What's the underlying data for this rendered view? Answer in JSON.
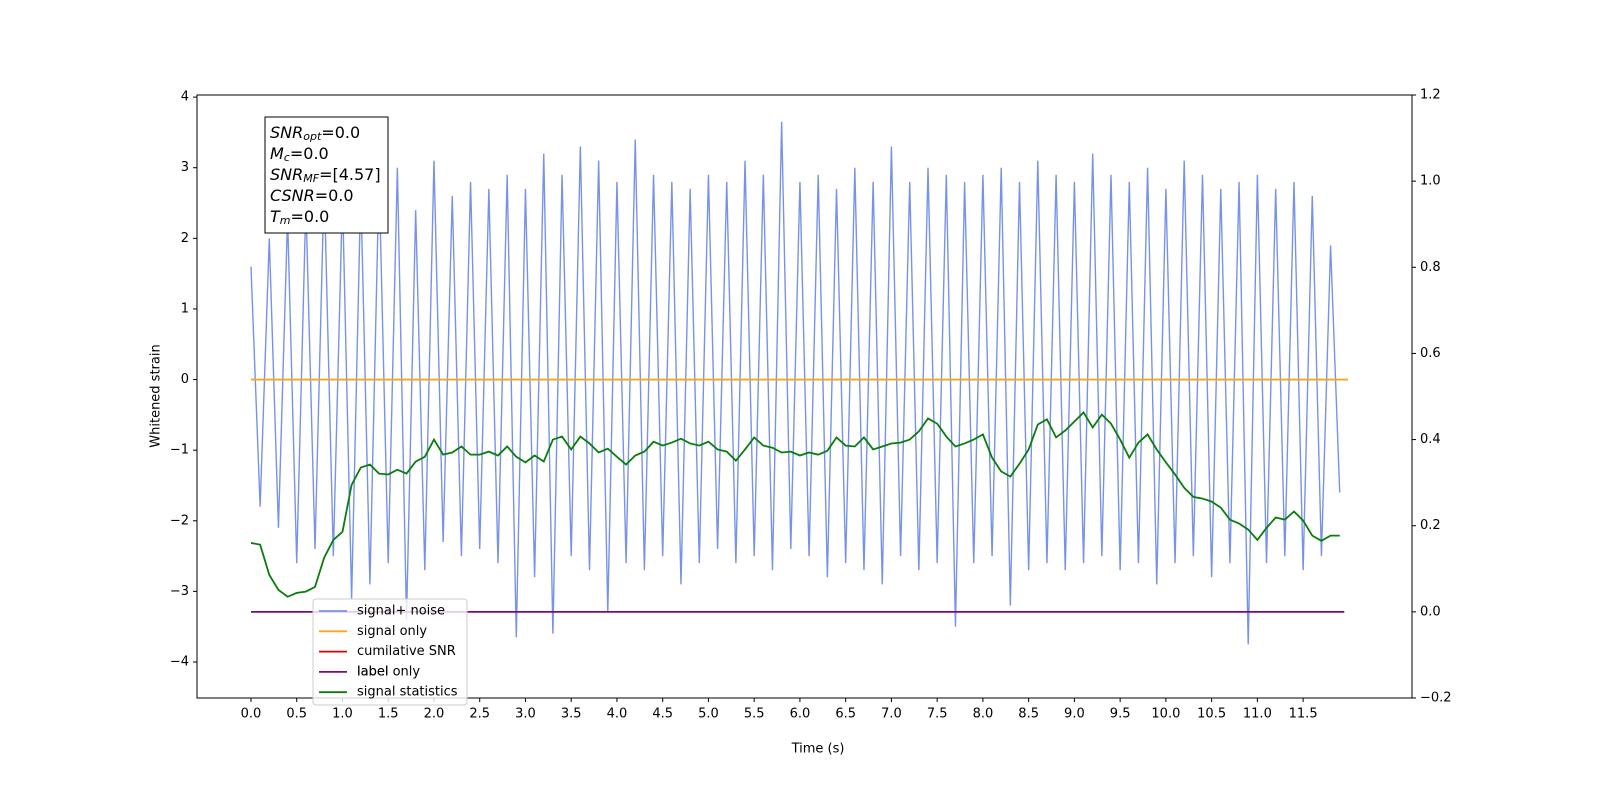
{
  "chart_data": {
    "type": "line",
    "xlabel": "Time (s)",
    "ylabel": "Whitened strain",
    "xlim": [
      -0.59,
      12.69
    ],
    "ylim": [
      -4.51,
      4.03
    ],
    "y2lim": [
      -0.2,
      1.2
    ],
    "xticks": [
      {
        "value": 0,
        "label": "0.0"
      },
      {
        "value": 0.5,
        "label": "0.5"
      },
      {
        "value": 1,
        "label": "1.0"
      },
      {
        "value": 1.5,
        "label": "1.5"
      },
      {
        "value": 2,
        "label": "2.0"
      },
      {
        "value": 2.5,
        "label": "2.5"
      },
      {
        "value": 3,
        "label": "3.0"
      },
      {
        "value": 3.5,
        "label": "3.5"
      },
      {
        "value": 4,
        "label": "4.0"
      },
      {
        "value": 4.5,
        "label": "4.5"
      },
      {
        "value": 5,
        "label": "5.0"
      },
      {
        "value": 5.5,
        "label": "5.5"
      },
      {
        "value": 6,
        "label": "6.0"
      },
      {
        "value": 6.5,
        "label": "6.5"
      },
      {
        "value": 7,
        "label": "7.0"
      },
      {
        "value": 7.5,
        "label": "7.5"
      },
      {
        "value": 8,
        "label": "8.0"
      },
      {
        "value": 8.5,
        "label": "8.5"
      },
      {
        "value": 9,
        "label": "9.0"
      },
      {
        "value": 9.5,
        "label": "9.5"
      },
      {
        "value": 10,
        "label": "10.0"
      },
      {
        "value": 10.5,
        "label": "10.5"
      },
      {
        "value": 11,
        "label": "11.0"
      },
      {
        "value": 11.5,
        "label": "11.5"
      }
    ],
    "yticks": [
      {
        "value": -4,
        "label": "−4"
      },
      {
        "value": -3,
        "label": "−3"
      },
      {
        "value": -2,
        "label": "−2"
      },
      {
        "value": -1,
        "label": "−1"
      },
      0,
      1,
      2,
      3,
      4
    ],
    "y2ticks": [
      {
        "value": -0.2,
        "label": "−0.2"
      },
      {
        "value": 0,
        "label": "0.0"
      },
      0.2,
      0.4,
      0.6,
      0.8,
      {
        "value": 1,
        "label": "1.0"
      },
      1.2
    ],
    "annotations": [
      {
        "symbol": "SNR",
        "sub": "opt",
        "text": "=0.0"
      },
      {
        "symbol": "M",
        "sub": "c",
        "text": "=0.0"
      },
      {
        "symbol": "SNR",
        "sub": "MF",
        "text": "=[4.57]"
      },
      {
        "symbol": "CSNR",
        "text": "=0.0"
      },
      {
        "symbol": "T",
        "sub": "m",
        "text": "=0.0"
      }
    ],
    "x": [
      0.0,
      0.1,
      0.2,
      0.3,
      0.4,
      0.5,
      0.6,
      0.7,
      0.8,
      0.9,
      1.0,
      1.1,
      1.2,
      1.3,
      1.4,
      1.5,
      1.6,
      1.7,
      1.8,
      1.9,
      2.0,
      2.1,
      2.2,
      2.3,
      2.4,
      2.5,
      2.6,
      2.7,
      2.8,
      2.9,
      3.0,
      3.1,
      3.2,
      3.3,
      3.4,
      3.5,
      3.6,
      3.7,
      3.8,
      3.9,
      4.0,
      4.1,
      4.2,
      4.3,
      4.4,
      4.5,
      4.6,
      4.7,
      4.8,
      4.9,
      5.0,
      5.1,
      5.2,
      5.3,
      5.4,
      5.5,
      5.6,
      5.7,
      5.8,
      5.9,
      6.0,
      6.1,
      6.2,
      6.3,
      6.4,
      6.5,
      6.6,
      6.7,
      6.8,
      6.9,
      7.0,
      7.1,
      7.2,
      7.3,
      7.4,
      7.5,
      7.6,
      7.7,
      7.8,
      7.9,
      8.0,
      8.1,
      8.2,
      8.3,
      8.4,
      8.5,
      8.6,
      8.7,
      8.8,
      8.9,
      9.0,
      9.1,
      9.2,
      9.3,
      9.4,
      9.5,
      9.6,
      9.7,
      9.8,
      9.9,
      10.0,
      10.1,
      10.2,
      10.3,
      10.4,
      10.5,
      10.6,
      10.7,
      10.8,
      10.9,
      11.0,
      11.1,
      11.2,
      11.3,
      11.4,
      11.5,
      11.6,
      11.7,
      11.8,
      11.9
    ],
    "series": [
      {
        "name": "signal+ noise",
        "color": "#7893e6",
        "values": [
          1.6,
          -1.8,
          2.0,
          -2.1,
          2.3,
          -2.6,
          2.5,
          -2.4,
          2.8,
          -2.5,
          2.6,
          -3.1,
          2.7,
          -2.9,
          2.9,
          -2.6,
          3.0,
          -3.4,
          2.4,
          -2.7,
          3.1,
          -2.3,
          2.6,
          -2.5,
          2.8,
          -2.4,
          2.7,
          -2.6,
          2.9,
          -3.65,
          2.7,
          -2.8,
          3.2,
          -3.6,
          2.9,
          -2.5,
          3.3,
          -2.7,
          3.1,
          -3.3,
          2.8,
          -2.6,
          3.4,
          -2.7,
          2.9,
          -2.5,
          2.8,
          -2.9,
          2.7,
          -2.6,
          2.9,
          -2.4,
          2.8,
          -2.6,
          3.1,
          -2.5,
          2.9,
          -2.7,
          3.65,
          -2.4,
          2.8,
          -2.5,
          2.9,
          -2.8,
          2.7,
          -2.6,
          3.0,
          -2.7,
          2.8,
          -2.9,
          3.3,
          -2.5,
          2.8,
          -2.7,
          3.0,
          -2.6,
          2.9,
          -3.5,
          2.8,
          -2.6,
          2.9,
          -2.5,
          3.0,
          -3.2,
          2.8,
          -2.7,
          3.1,
          -2.6,
          2.9,
          -2.7,
          2.8,
          -2.6,
          3.2,
          -2.5,
          2.9,
          -2.7,
          2.8,
          -2.6,
          3.0,
          -2.9,
          2.7,
          -2.6,
          3.1,
          -2.5,
          2.9,
          -2.8,
          2.7,
          -2.6,
          2.8,
          -3.75,
          2.9,
          -2.6,
          2.7,
          -2.5,
          2.8,
          -2.7,
          2.6,
          -2.5,
          1.9,
          -1.6
        ]
      },
      {
        "name": "signal only",
        "color": "#f5a623",
        "x": [
          0,
          11.99
        ],
        "values": [
          0,
          0
        ]
      },
      {
        "name": "cumilative SNR",
        "color": "#e00000"
      },
      {
        "name": "label",
        "color": "#7b0a7b",
        "axis": "y2",
        "x": [
          0,
          11.95
        ],
        "values": [
          0,
          0
        ]
      },
      {
        "name": "label only"
      },
      {
        "name": "signal statistics",
        "color": "#0a7d0a",
        "axis": "y2",
        "values": [
          0.16,
          0.156,
          0.086,
          0.051,
          0.035,
          0.044,
          0.047,
          0.058,
          0.126,
          0.167,
          0.186,
          0.295,
          0.335,
          0.342,
          0.321,
          0.319,
          0.33,
          0.321,
          0.349,
          0.36,
          0.4,
          0.365,
          0.37,
          0.384,
          0.365,
          0.365,
          0.372,
          0.363,
          0.384,
          0.36,
          0.347,
          0.363,
          0.349,
          0.4,
          0.407,
          0.377,
          0.407,
          0.391,
          0.37,
          0.379,
          0.36,
          0.342,
          0.363,
          0.372,
          0.395,
          0.386,
          0.393,
          0.402,
          0.391,
          0.386,
          0.395,
          0.377,
          0.372,
          0.351,
          0.377,
          0.405,
          0.386,
          0.381,
          0.37,
          0.372,
          0.363,
          0.37,
          0.365,
          0.374,
          0.405,
          0.386,
          0.384,
          0.405,
          0.377,
          0.384,
          0.391,
          0.393,
          0.4,
          0.419,
          0.449,
          0.437,
          0.407,
          0.384,
          0.391,
          0.4,
          0.412,
          0.358,
          0.326,
          0.314,
          0.344,
          0.377,
          0.435,
          0.447,
          0.405,
          0.421,
          0.442,
          0.463,
          0.428,
          0.458,
          0.437,
          0.4,
          0.358,
          0.393,
          0.412,
          0.377,
          0.347,
          0.319,
          0.288,
          0.267,
          0.263,
          0.256,
          0.242,
          0.214,
          0.205,
          0.191,
          0.167,
          0.195,
          0.219,
          0.214,
          0.233,
          0.212,
          0.177,
          0.165,
          0.177,
          0.177
        ]
      }
    ]
  }
}
